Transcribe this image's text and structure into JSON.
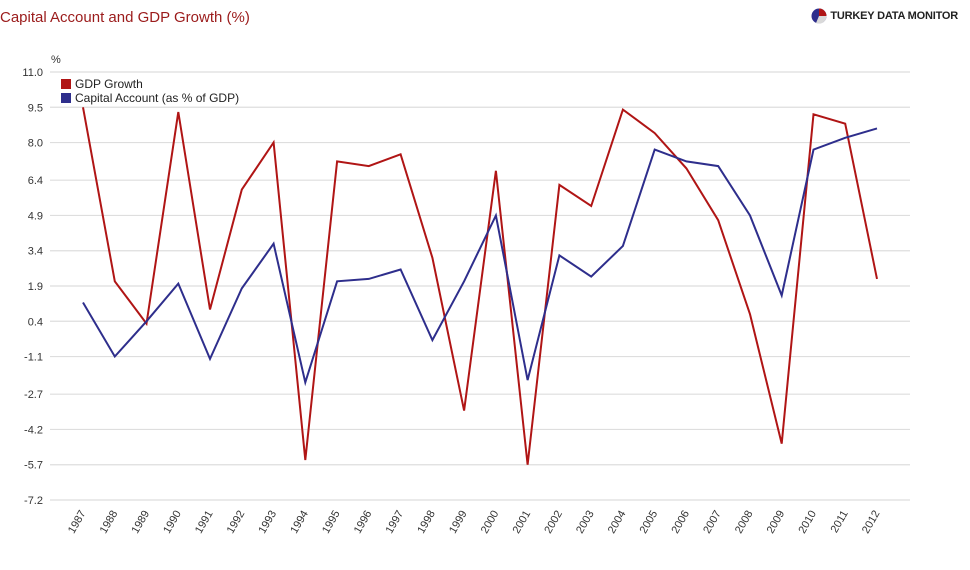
{
  "header": {
    "title": "Capital Account and GDP Growth (%)",
    "brand": "TURKEY DATA MONITOR",
    "brand_icon": "pie-logo-icon"
  },
  "chart_data": {
    "type": "line",
    "title": "Capital Account and GDP Growth (%)",
    "ylabel": "%",
    "xlabel": "",
    "ylim": [
      -7.2,
      11.0
    ],
    "yticks": [
      "11.0",
      "9.5",
      "8.0",
      "6.4",
      "4.9",
      "3.4",
      "1.9",
      "0.4",
      "-1.1",
      "-2.7",
      "-4.2",
      "-5.7",
      "-7.2"
    ],
    "grid": true,
    "legend_position": "top-left",
    "categories": [
      "1987",
      "1988",
      "1989",
      "1990",
      "1991",
      "1992",
      "1993",
      "1994",
      "1995",
      "1996",
      "1997",
      "1998",
      "1999",
      "2000",
      "2001",
      "2002",
      "2003",
      "2004",
      "2005",
      "2006",
      "2007",
      "2008",
      "2009",
      "2010",
      "2011",
      "2012"
    ],
    "series": [
      {
        "name": "GDP Growth",
        "color": "#b01515",
        "values": [
          9.5,
          2.1,
          0.3,
          9.3,
          0.9,
          6.0,
          8.0,
          -5.5,
          7.2,
          7.0,
          7.5,
          3.1,
          -3.4,
          6.8,
          -5.7,
          6.2,
          5.3,
          9.4,
          8.4,
          6.9,
          4.7,
          0.7,
          -4.8,
          9.2,
          8.8,
          2.2
        ]
      },
      {
        "name": "Capital Account (as % of GDP)",
        "color": "#2e2e8c",
        "values": [
          1.2,
          -1.1,
          0.4,
          2.0,
          -1.2,
          1.8,
          3.7,
          -2.2,
          2.1,
          2.2,
          2.6,
          -0.4,
          2.1,
          4.9,
          -2.1,
          3.2,
          2.3,
          3.6,
          7.7,
          7.2,
          7.0,
          4.9,
          1.5,
          7.7,
          8.2,
          8.6
        ]
      }
    ]
  }
}
